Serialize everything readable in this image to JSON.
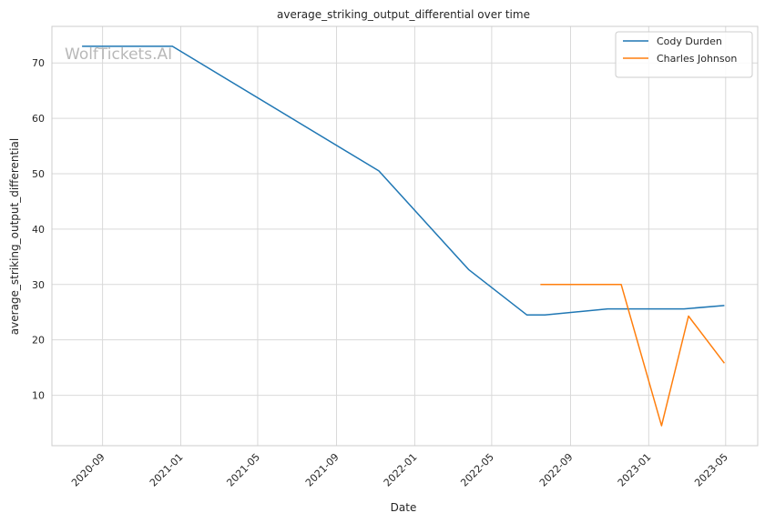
{
  "chart_data": {
    "type": "line",
    "title": "average_striking_output_differential over time",
    "xlabel": "Date",
    "ylabel": "average_striking_output_differential",
    "watermark": "WolfTickets.AI",
    "x_tick_labels": [
      "2020-09",
      "2021-01",
      "2021-05",
      "2021-09",
      "2022-01",
      "2022-05",
      "2022-09",
      "2023-01",
      "2023-05"
    ],
    "x_ticks": [
      "2020-09-01",
      "2021-01-01",
      "2021-05-01",
      "2021-09-01",
      "2022-01-01",
      "2022-05-01",
      "2022-09-01",
      "2023-01-01",
      "2023-05-01"
    ],
    "xlim": [
      "2020-06-14",
      "2023-06-20"
    ],
    "y_ticks": [
      10,
      20,
      30,
      40,
      50,
      60,
      70
    ],
    "ylim": [
      0.9,
      76.6
    ],
    "grid": true,
    "legend_position": "top-right",
    "series": [
      {
        "name": "Cody Durden",
        "color": "#1f77b4",
        "points": [
          {
            "x": "2020-07-31",
            "y": 73.0
          },
          {
            "x": "2020-12-19",
            "y": 73.0
          },
          {
            "x": "2021-11-06",
            "y": 50.5
          },
          {
            "x": "2022-03-26",
            "y": 32.7
          },
          {
            "x": "2022-06-25",
            "y": 24.5
          },
          {
            "x": "2022-07-23",
            "y": 24.5
          },
          {
            "x": "2022-10-29",
            "y": 25.6
          },
          {
            "x": "2023-01-14",
            "y": 25.6
          },
          {
            "x": "2023-02-25",
            "y": 25.6
          },
          {
            "x": "2023-04-29",
            "y": 26.2
          }
        ]
      },
      {
        "name": "Charles Johnson",
        "color": "#ff7f0e",
        "points": [
          {
            "x": "2022-07-16",
            "y": 30.0
          },
          {
            "x": "2022-11-19",
            "y": 30.0
          },
          {
            "x": "2023-01-21",
            "y": 4.5
          },
          {
            "x": "2023-03-04",
            "y": 24.3
          },
          {
            "x": "2023-04-29",
            "y": 15.8
          }
        ]
      }
    ]
  }
}
